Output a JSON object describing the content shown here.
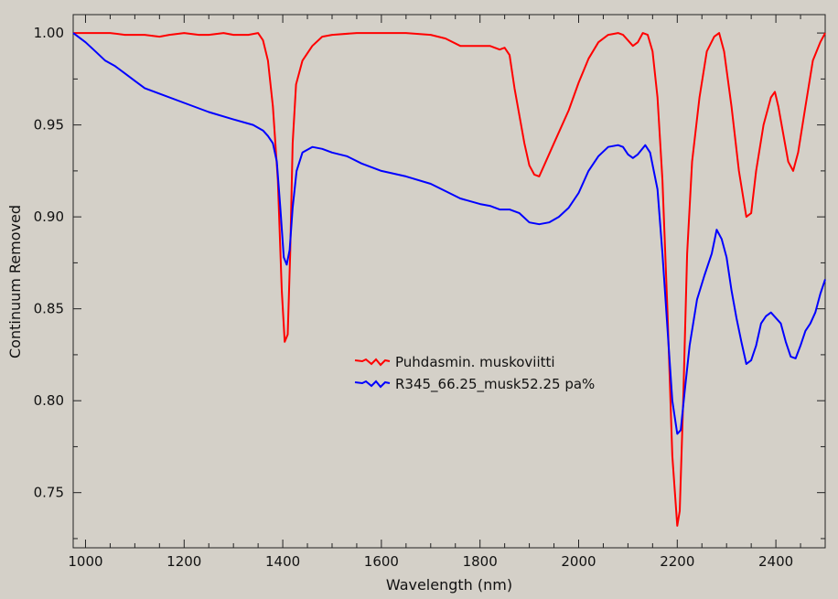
{
  "chart_data": {
    "type": "line",
    "xlabel": "Wavelength (nm)",
    "ylabel": "Continuum Removed",
    "xlim": [
      975,
      2500
    ],
    "ylim": [
      0.72,
      1.01
    ],
    "x_ticks": [
      1000,
      1200,
      1400,
      1600,
      1800,
      2000,
      2200,
      2400
    ],
    "x_tick_labels": [
      "1000",
      "1200",
      "1400",
      "1600",
      "1800",
      "2000",
      "2200",
      "2400"
    ],
    "y_ticks": [
      0.75,
      0.8,
      0.85,
      0.9,
      0.95,
      1.0
    ],
    "y_tick_labels": [
      "0.75",
      "0.80",
      "0.85",
      "0.90",
      "0.95",
      "1.00"
    ],
    "grid": false,
    "legend_position": "center",
    "background_color": "#d4d0c8",
    "series": [
      {
        "name": "Puhdasmin. muskoviitti",
        "color": "#ff0000",
        "points": [
          [
            975,
            1.0
          ],
          [
            1000,
            1.0
          ],
          [
            1050,
            1.0
          ],
          [
            1080,
            0.999
          ],
          [
            1120,
            0.999
          ],
          [
            1150,
            0.998
          ],
          [
            1170,
            0.999
          ],
          [
            1200,
            1.0
          ],
          [
            1230,
            0.999
          ],
          [
            1250,
            0.999
          ],
          [
            1280,
            1.0
          ],
          [
            1300,
            0.999
          ],
          [
            1330,
            0.999
          ],
          [
            1350,
            1.0
          ],
          [
            1360,
            0.996
          ],
          [
            1370,
            0.985
          ],
          [
            1380,
            0.96
          ],
          [
            1390,
            0.92
          ],
          [
            1398,
            0.86
          ],
          [
            1404,
            0.832
          ],
          [
            1410,
            0.836
          ],
          [
            1415,
            0.88
          ],
          [
            1420,
            0.94
          ],
          [
            1427,
            0.972
          ],
          [
            1440,
            0.985
          ],
          [
            1460,
            0.993
          ],
          [
            1480,
            0.998
          ],
          [
            1500,
            0.999
          ],
          [
            1550,
            1.0
          ],
          [
            1600,
            1.0
          ],
          [
            1650,
            1.0
          ],
          [
            1700,
            0.999
          ],
          [
            1730,
            0.997
          ],
          [
            1760,
            0.993
          ],
          [
            1800,
            0.993
          ],
          [
            1820,
            0.993
          ],
          [
            1840,
            0.991
          ],
          [
            1850,
            0.992
          ],
          [
            1860,
            0.988
          ],
          [
            1870,
            0.97
          ],
          [
            1880,
            0.955
          ],
          [
            1890,
            0.94
          ],
          [
            1900,
            0.928
          ],
          [
            1910,
            0.923
          ],
          [
            1920,
            0.922
          ],
          [
            1930,
            0.928
          ],
          [
            1950,
            0.94
          ],
          [
            1980,
            0.958
          ],
          [
            2000,
            0.973
          ],
          [
            2020,
            0.986
          ],
          [
            2040,
            0.995
          ],
          [
            2060,
            0.999
          ],
          [
            2080,
            1.0
          ],
          [
            2090,
            0.999
          ],
          [
            2100,
            0.996
          ],
          [
            2110,
            0.993
          ],
          [
            2120,
            0.995
          ],
          [
            2130,
            1.0
          ],
          [
            2140,
            0.999
          ],
          [
            2150,
            0.99
          ],
          [
            2160,
            0.965
          ],
          [
            2170,
            0.92
          ],
          [
            2180,
            0.85
          ],
          [
            2190,
            0.77
          ],
          [
            2200,
            0.732
          ],
          [
            2205,
            0.74
          ],
          [
            2212,
            0.8
          ],
          [
            2220,
            0.88
          ],
          [
            2230,
            0.93
          ],
          [
            2245,
            0.965
          ],
          [
            2260,
            0.99
          ],
          [
            2275,
            0.998
          ],
          [
            2285,
            1.0
          ],
          [
            2295,
            0.99
          ],
          [
            2310,
            0.96
          ],
          [
            2325,
            0.925
          ],
          [
            2340,
            0.9
          ],
          [
            2350,
            0.902
          ],
          [
            2360,
            0.925
          ],
          [
            2375,
            0.95
          ],
          [
            2390,
            0.965
          ],
          [
            2398,
            0.968
          ],
          [
            2405,
            0.96
          ],
          [
            2415,
            0.945
          ],
          [
            2425,
            0.93
          ],
          [
            2435,
            0.925
          ],
          [
            2445,
            0.935
          ],
          [
            2460,
            0.96
          ],
          [
            2475,
            0.985
          ],
          [
            2490,
            0.995
          ],
          [
            2500,
            1.0
          ]
        ]
      },
      {
        "name": "R345_66.25_musk52.25 pa%",
        "color": "#0000ff",
        "points": [
          [
            975,
            1.0
          ],
          [
            1000,
            0.995
          ],
          [
            1020,
            0.99
          ],
          [
            1040,
            0.985
          ],
          [
            1060,
            0.982
          ],
          [
            1080,
            0.978
          ],
          [
            1100,
            0.974
          ],
          [
            1120,
            0.97
          ],
          [
            1150,
            0.967
          ],
          [
            1200,
            0.962
          ],
          [
            1250,
            0.957
          ],
          [
            1300,
            0.953
          ],
          [
            1340,
            0.95
          ],
          [
            1360,
            0.947
          ],
          [
            1370,
            0.944
          ],
          [
            1380,
            0.94
          ],
          [
            1388,
            0.93
          ],
          [
            1395,
            0.905
          ],
          [
            1402,
            0.878
          ],
          [
            1408,
            0.874
          ],
          [
            1414,
            0.882
          ],
          [
            1420,
            0.905
          ],
          [
            1428,
            0.925
          ],
          [
            1440,
            0.935
          ],
          [
            1460,
            0.938
          ],
          [
            1480,
            0.937
          ],
          [
            1500,
            0.935
          ],
          [
            1530,
            0.933
          ],
          [
            1560,
            0.929
          ],
          [
            1600,
            0.925
          ],
          [
            1650,
            0.922
          ],
          [
            1700,
            0.918
          ],
          [
            1730,
            0.914
          ],
          [
            1760,
            0.91
          ],
          [
            1800,
            0.907
          ],
          [
            1820,
            0.906
          ],
          [
            1840,
            0.904
          ],
          [
            1860,
            0.904
          ],
          [
            1880,
            0.902
          ],
          [
            1900,
            0.897
          ],
          [
            1920,
            0.896
          ],
          [
            1940,
            0.897
          ],
          [
            1960,
            0.9
          ],
          [
            1980,
            0.905
          ],
          [
            2000,
            0.913
          ],
          [
            2020,
            0.925
          ],
          [
            2040,
            0.933
          ],
          [
            2060,
            0.938
          ],
          [
            2080,
            0.939
          ],
          [
            2090,
            0.938
          ],
          [
            2100,
            0.934
          ],
          [
            2110,
            0.932
          ],
          [
            2120,
            0.934
          ],
          [
            2135,
            0.939
          ],
          [
            2145,
            0.935
          ],
          [
            2160,
            0.915
          ],
          [
            2170,
            0.88
          ],
          [
            2180,
            0.84
          ],
          [
            2190,
            0.8
          ],
          [
            2200,
            0.782
          ],
          [
            2207,
            0.784
          ],
          [
            2215,
            0.805
          ],
          [
            2225,
            0.83
          ],
          [
            2240,
            0.855
          ],
          [
            2255,
            0.868
          ],
          [
            2270,
            0.88
          ],
          [
            2280,
            0.893
          ],
          [
            2290,
            0.888
          ],
          [
            2300,
            0.878
          ],
          [
            2310,
            0.86
          ],
          [
            2320,
            0.845
          ],
          [
            2330,
            0.832
          ],
          [
            2340,
            0.82
          ],
          [
            2350,
            0.822
          ],
          [
            2360,
            0.83
          ],
          [
            2370,
            0.842
          ],
          [
            2380,
            0.846
          ],
          [
            2390,
            0.848
          ],
          [
            2400,
            0.845
          ],
          [
            2410,
            0.842
          ],
          [
            2420,
            0.832
          ],
          [
            2430,
            0.824
          ],
          [
            2440,
            0.823
          ],
          [
            2450,
            0.83
          ],
          [
            2460,
            0.838
          ],
          [
            2470,
            0.842
          ],
          [
            2480,
            0.848
          ],
          [
            2490,
            0.858
          ],
          [
            2500,
            0.866
          ]
        ]
      }
    ]
  }
}
